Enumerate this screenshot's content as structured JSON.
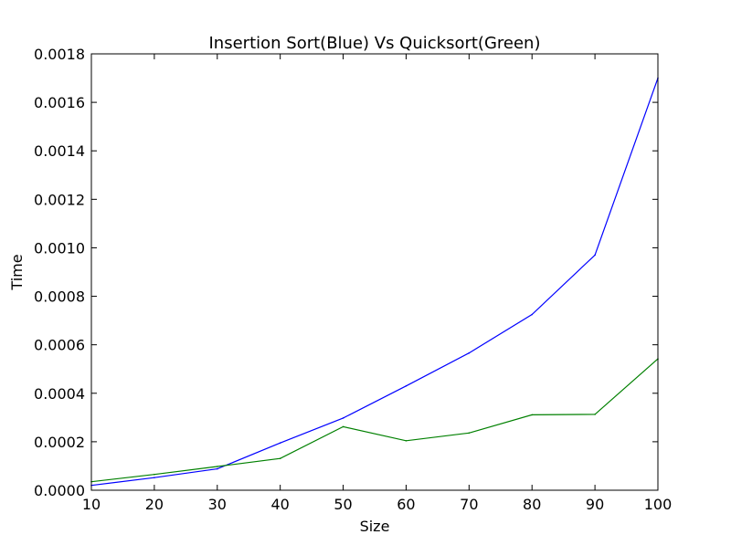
{
  "chart_data": {
    "type": "line",
    "title": "Insertion Sort(Blue) Vs Quicksort(Green)",
    "xlabel": "Size",
    "ylabel": "Time",
    "xlim": [
      10,
      100
    ],
    "ylim": [
      0,
      0.0018
    ],
    "grid": false,
    "x": [
      10,
      20,
      30,
      40,
      50,
      60,
      70,
      80,
      90,
      100
    ],
    "xticks": [
      "10",
      "20",
      "30",
      "40",
      "50",
      "60",
      "70",
      "80",
      "90",
      "100"
    ],
    "yticks": [
      "0.0000",
      "0.0002",
      "0.0004",
      "0.0006",
      "0.0008",
      "0.0010",
      "0.0012",
      "0.0014",
      "0.0016",
      "0.0018"
    ],
    "series": [
      {
        "color": "#0000ff",
        "values": [
          2e-05,
          5.2e-05,
          8.8e-05,
          0.000195,
          0.000298,
          0.00043,
          0.000566,
          0.000725,
          0.00097,
          0.0017
        ]
      },
      {
        "color": "#008000",
        "values": [
          3.5e-05,
          6.5e-05,
          9.8e-05,
          0.000131,
          0.000262,
          0.000204,
          0.000236,
          0.000311,
          0.000313,
          0.000542
        ]
      }
    ]
  }
}
